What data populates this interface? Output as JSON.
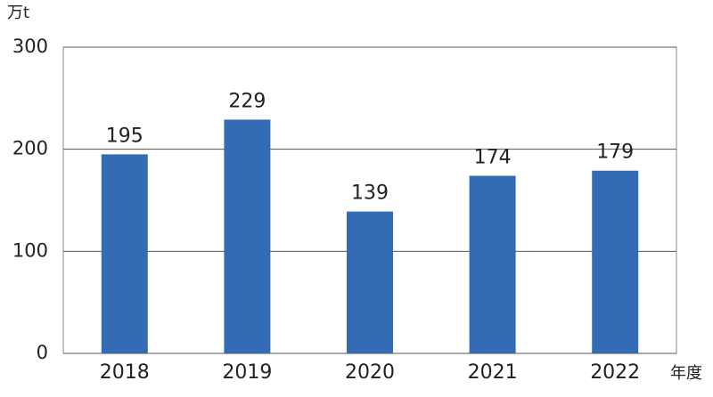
{
  "chart_data": {
    "type": "bar",
    "y_label": "万t",
    "x_label": "年度",
    "categories": [
      "2018",
      "2019",
      "2020",
      "2021",
      "2022"
    ],
    "values": [
      195,
      229,
      139,
      174,
      179
    ],
    "color": "#346bb5",
    "ylim": [
      0,
      300
    ],
    "yticks": [
      0,
      100,
      200,
      300
    ],
    "grid": true
  }
}
